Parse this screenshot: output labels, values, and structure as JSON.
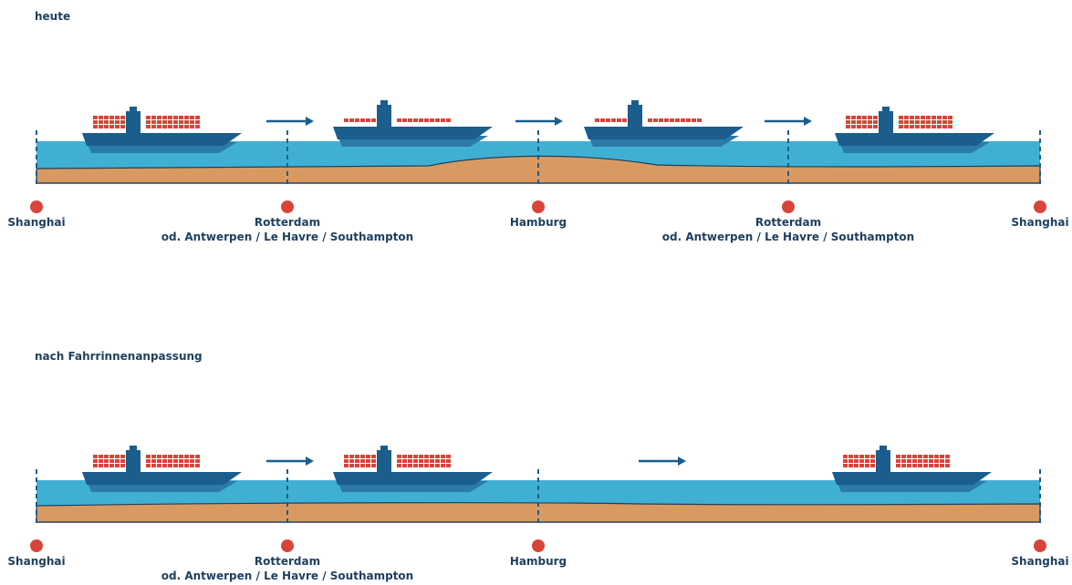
{
  "panels": [
    {
      "title": "heute",
      "stops": [
        {
          "name": "Shanghai"
        },
        {
          "name": "Rotterdam",
          "alt": "od. Antwerpen / Le Havre / Southampton"
        },
        {
          "name": "Hamburg"
        },
        {
          "name": "Rotterdam",
          "alt": "od. Antwerpen / Le Havre / Southampton"
        },
        {
          "name": "Shanghai"
        }
      ]
    },
    {
      "title": "nach Fahrrinnenanpassung",
      "stops": [
        {
          "name": "Shanghai"
        },
        {
          "name": "Rotterdam",
          "alt": "od. Antwerpen / Le Havre / Southampton"
        },
        {
          "name": "Hamburg"
        },
        {
          "name": "Shanghai"
        }
      ]
    }
  ]
}
